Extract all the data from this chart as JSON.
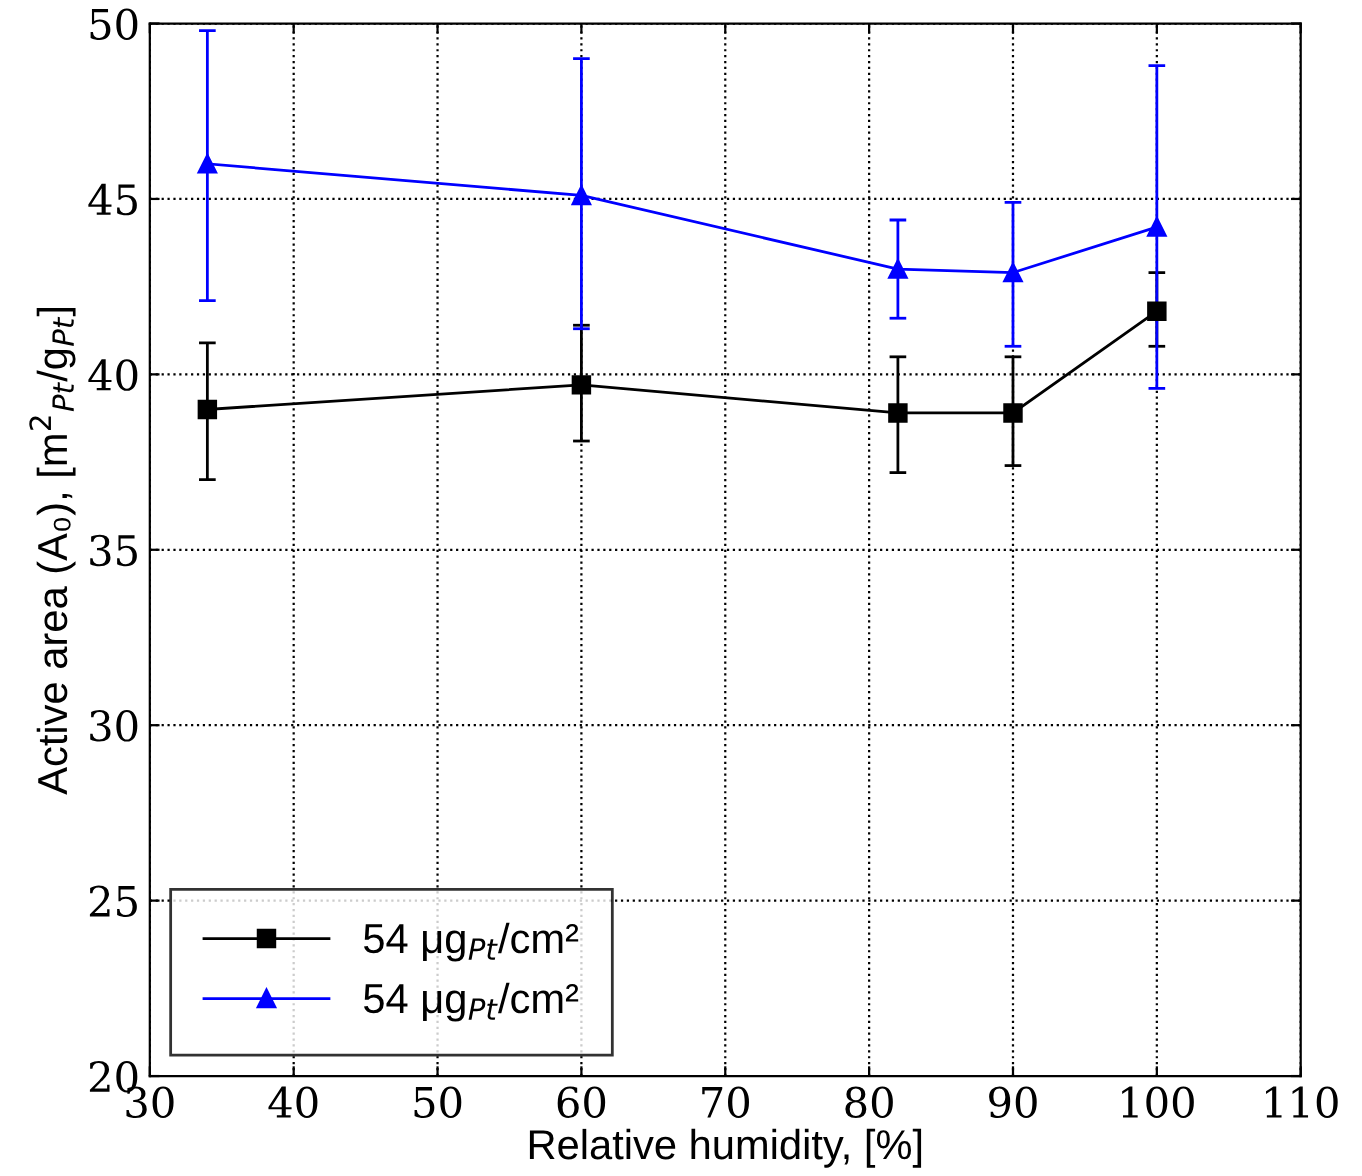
{
  "chart_data": {
    "type": "line",
    "xlabel": "Relative humidity, [%]",
    "ylabel": "Active area (A₀), [m$^{2}$$_{Pt}$/g$_{Pt}$]",
    "x": [
      34,
      60,
      82,
      90,
      100
    ],
    "series": [
      {
        "name": "54 μg$_{Pt}$/cm²",
        "color": "#000000",
        "marker": "square",
        "values": [
          39.0,
          39.7,
          38.9,
          38.9,
          41.8
        ],
        "errors": [
          [
            37.0,
            40.9
          ],
          [
            38.1,
            41.4
          ],
          [
            37.2,
            40.5
          ],
          [
            37.4,
            40.5
          ],
          [
            40.8,
            42.9
          ]
        ]
      },
      {
        "name": "54 μg$_{Pt}$/cm²",
        "color": "#0000ff",
        "marker": "triangle",
        "values": [
          46.0,
          45.1,
          43.0,
          42.9,
          44.2
        ],
        "errors": [
          [
            42.1,
            49.8
          ],
          [
            41.3,
            49.0
          ],
          [
            41.6,
            44.4
          ],
          [
            40.8,
            44.9
          ],
          [
            39.6,
            48.8
          ]
        ]
      }
    ],
    "xlim": [
      30,
      110
    ],
    "xticks": [
      30,
      40,
      50,
      60,
      70,
      80,
      90,
      100,
      110
    ],
    "ylim": [
      20,
      50
    ],
    "yticks": [
      20,
      25,
      30,
      35,
      40,
      45,
      50
    ],
    "grid": true,
    "legend": "bottom left",
    "line_style": "solid"
  }
}
